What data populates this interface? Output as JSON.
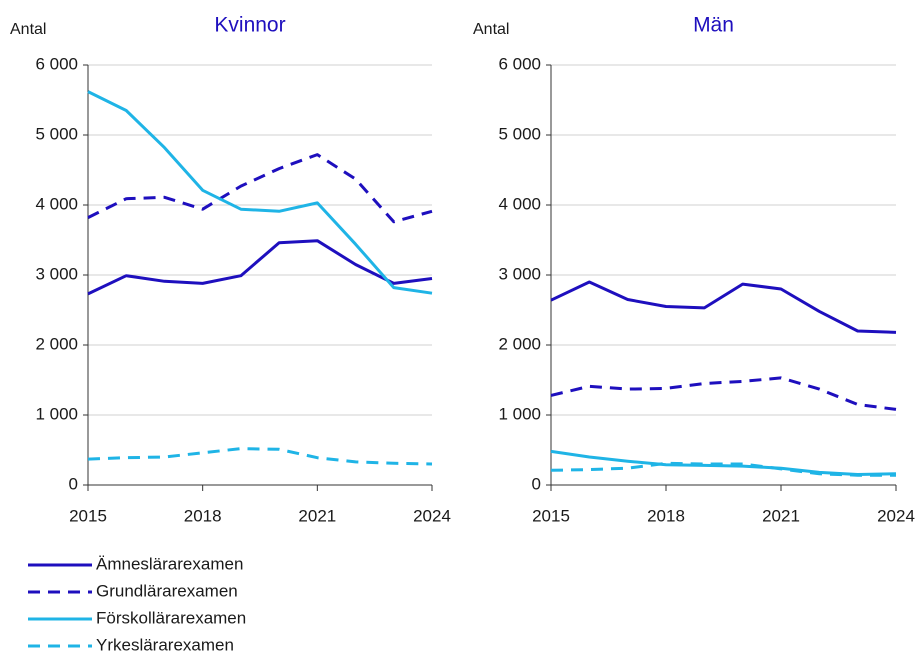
{
  "chart_data": [
    {
      "type": "line",
      "title": "Kvinnor",
      "ylabel": "Antal",
      "x": [
        2015,
        2016,
        2017,
        2018,
        2019,
        2020,
        2021,
        2022,
        2023,
        2024
      ],
      "xlim": [
        2015,
        2024
      ],
      "xticks": [
        2015,
        2018,
        2021,
        2024
      ],
      "ylim": [
        0,
        6000
      ],
      "yticks": [
        0,
        {
          "value": 1000,
          "label": "1 000"
        },
        {
          "value": 2000,
          "label": "2 000"
        },
        {
          "value": 3000,
          "label": "3 000"
        },
        {
          "value": 4000,
          "label": "4 000"
        },
        {
          "value": 5000,
          "label": "5 000"
        },
        {
          "value": 6000,
          "label": "6 000"
        }
      ],
      "grid": true,
      "legend": "bottom-left",
      "series": [
        {
          "name": "Ämneslärarexamen",
          "color": "#1e0fbe",
          "dashed": false,
          "values": [
            2730,
            2990,
            2910,
            2880,
            2990,
            3460,
            3490,
            3150,
            2880,
            2950
          ]
        },
        {
          "name": "Grundlärarexamen",
          "color": "#1e0fbe",
          "dashed": true,
          "values": [
            3820,
            4090,
            4110,
            3940,
            4270,
            4520,
            4720,
            4370,
            3760,
            3910
          ]
        },
        {
          "name": "Förskollärarexamen",
          "color": "#1fb4e6",
          "dashed": false,
          "values": [
            5620,
            5350,
            4820,
            4210,
            3940,
            3910,
            4030,
            3440,
            2820,
            2740
          ]
        },
        {
          "name": "Yrkeslärarexamen",
          "color": "#1fb4e6",
          "dashed": true,
          "values": [
            370,
            390,
            400,
            460,
            520,
            510,
            390,
            330,
            310,
            300
          ]
        }
      ]
    },
    {
      "type": "line",
      "title": "Män",
      "ylabel": "Antal",
      "x": [
        2015,
        2016,
        2017,
        2018,
        2019,
        2020,
        2021,
        2022,
        2023,
        2024
      ],
      "xlim": [
        2015,
        2024
      ],
      "xticks": [
        2015,
        2018,
        2021,
        2024
      ],
      "ylim": [
        0,
        6000
      ],
      "yticks": [
        0,
        {
          "value": 1000,
          "label": "1 000"
        },
        {
          "value": 2000,
          "label": "2 000"
        },
        {
          "value": 3000,
          "label": "3 000"
        },
        {
          "value": 4000,
          "label": "4 000"
        },
        {
          "value": 5000,
          "label": "5 000"
        },
        {
          "value": 6000,
          "label": "6 000"
        }
      ],
      "grid": true,
      "series": [
        {
          "name": "Ämneslärarexamen",
          "color": "#1e0fbe",
          "dashed": false,
          "values": [
            2640,
            2900,
            2650,
            2550,
            2530,
            2870,
            2800,
            2480,
            2200,
            2180
          ]
        },
        {
          "name": "Grundlärarexamen",
          "color": "#1e0fbe",
          "dashed": true,
          "values": [
            1280,
            1410,
            1370,
            1380,
            1450,
            1480,
            1530,
            1370,
            1150,
            1080
          ]
        },
        {
          "name": "Förskollärarexamen",
          "color": "#1fb4e6",
          "dashed": false,
          "values": [
            480,
            400,
            340,
            290,
            280,
            270,
            240,
            180,
            150,
            160
          ]
        },
        {
          "name": "Yrkeslärarexamen",
          "color": "#1fb4e6",
          "dashed": true,
          "values": [
            210,
            220,
            240,
            310,
            300,
            300,
            230,
            160,
            140,
            140
          ]
        }
      ]
    }
  ]
}
